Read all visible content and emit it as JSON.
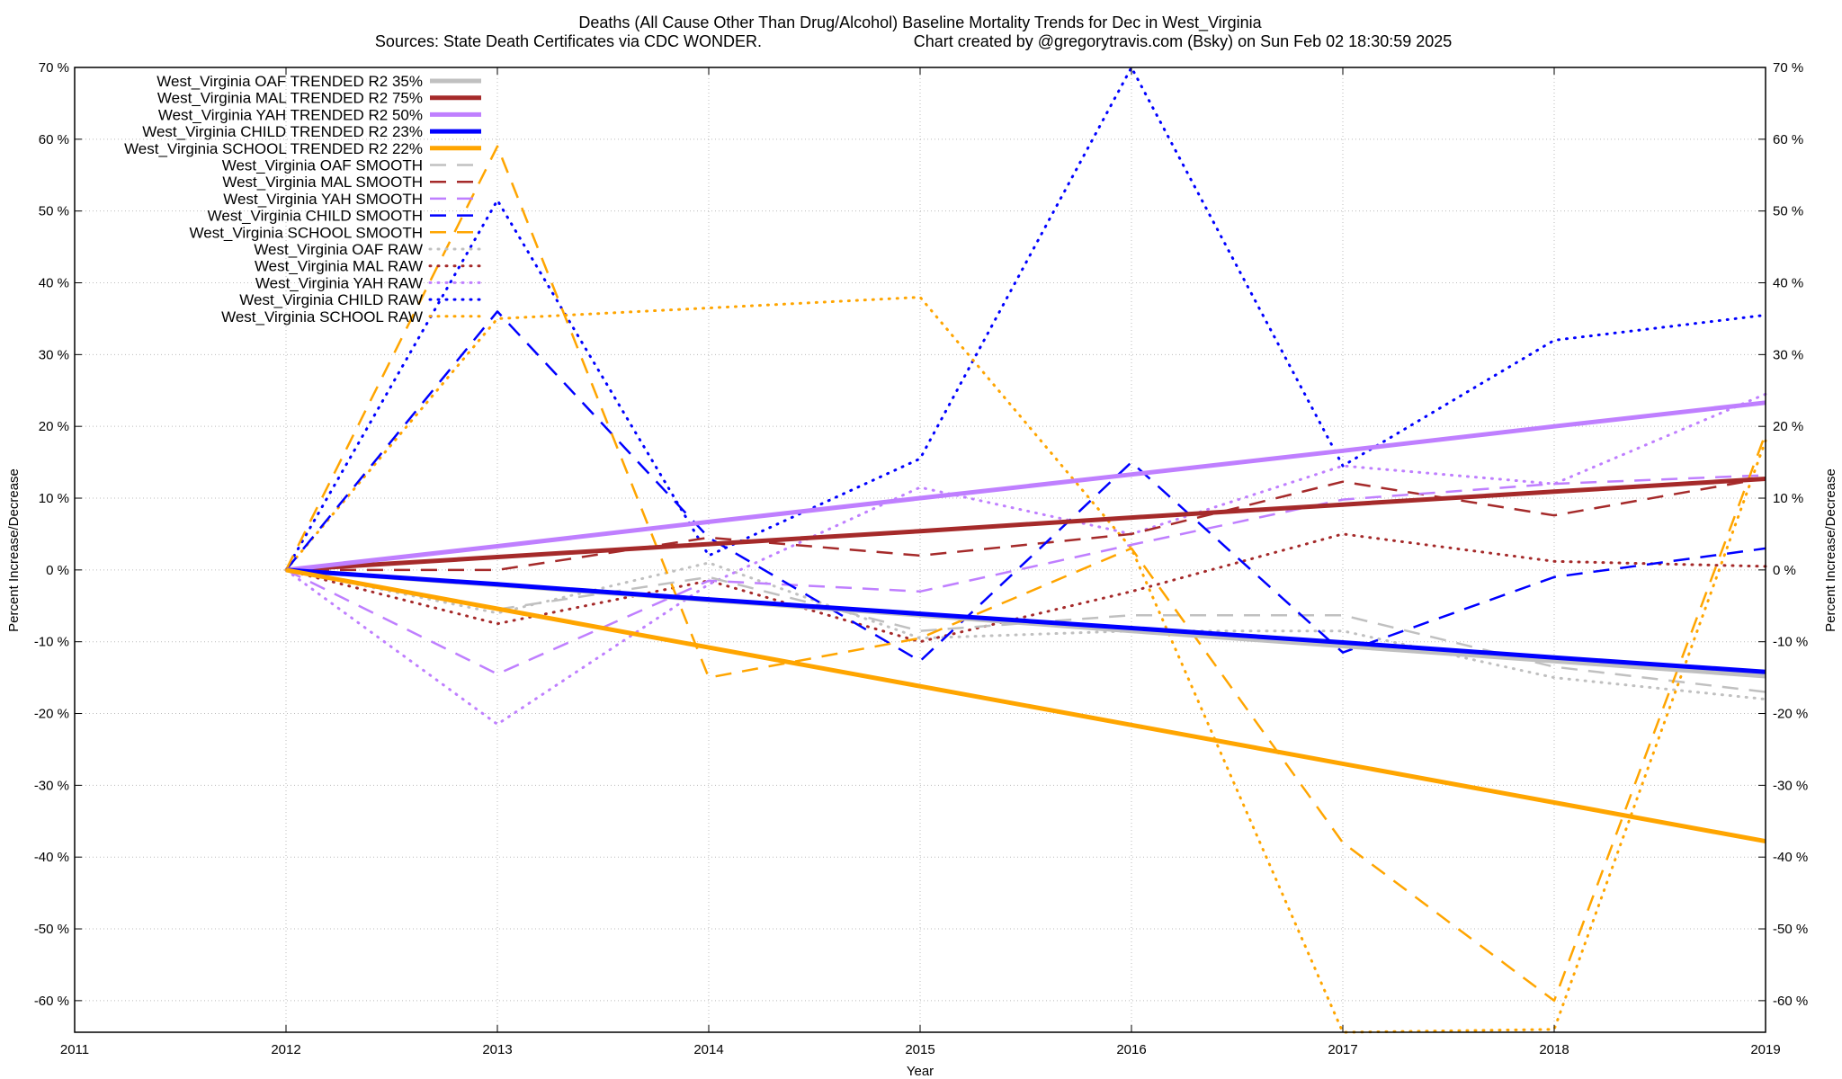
{
  "chart_data": {
    "type": "line",
    "title": "Deaths (All Cause Other Than Drug/Alcohol)  Baseline Mortality Trends for Dec in West_Virginia",
    "subtitle_left": "Sources: State Death Certificates via CDC WONDER.",
    "subtitle_right": "Chart created by @gregorytravis.com (Bsky) on Sun Feb 02 18:30:59 2025",
    "xlabel": "Year",
    "ylabel": "Percent Increase/Decrease",
    "y2label": "Percent Increase/Decrease",
    "xlim": [
      2011,
      2019
    ],
    "ylim": [
      -64.4,
      70
    ],
    "xticks": [
      "2011",
      "2012",
      "2013",
      "2014",
      "2015",
      "2016",
      "2017",
      "2018",
      "2019"
    ],
    "yticks": [
      "70 %",
      "60 %",
      "50 %",
      "40 %",
      "30 %",
      "20 %",
      "10 %",
      "0 %",
      "-10 %",
      "-20 %",
      "-30 %",
      "-40 %",
      "-50 %",
      "-60 %"
    ],
    "ytick_values": [
      70,
      60,
      50,
      40,
      30,
      20,
      10,
      0,
      -10,
      -20,
      -30,
      -40,
      -50,
      -60
    ],
    "grid": true,
    "legend_placement": "top-left",
    "x": [
      2012,
      2013,
      2014,
      2015,
      2016,
      2017,
      2018,
      2019
    ],
    "series": [
      {
        "name": "West_Virginia OAF TRENDED R2  35%",
        "style": "trend",
        "color": "#c0c0c0",
        "values": [
          0,
          -2.1,
          -4.2,
          -6.3,
          -8.5,
          -10.6,
          -12.7,
          -14.8
        ]
      },
      {
        "name": "West_Virginia MAL TRENDED R2  75%",
        "style": "trend",
        "color": "#a52a2a",
        "values": [
          0,
          1.8,
          3.6,
          5.4,
          7.3,
          9.1,
          10.9,
          12.7
        ]
      },
      {
        "name": "West_Virginia YAH TRENDED R2  50%",
        "style": "trend",
        "color": "#bf7fff",
        "values": [
          0,
          3.3,
          6.7,
          10.0,
          13.3,
          16.6,
          20.0,
          23.3
        ]
      },
      {
        "name": "West_Virginia CHILD TRENDED R2  23%",
        "style": "trend",
        "color": "#0000ff",
        "values": [
          0,
          -2.0,
          -4.1,
          -6.1,
          -8.1,
          -10.1,
          -12.2,
          -14.2
        ]
      },
      {
        "name": "West_Virginia SCHOOL TRENDED R2  22%",
        "style": "trend",
        "color": "#ffa500",
        "values": [
          0,
          -5.4,
          -10.8,
          -16.2,
          -21.6,
          -27.0,
          -32.4,
          -37.8
        ]
      },
      {
        "name": "West_Virginia OAF SMOOTH",
        "style": "smooth",
        "color": "#c0c0c0",
        "values": [
          0,
          -5.5,
          -1,
          -8.5,
          -6.3,
          -6.3,
          -13.5,
          -17
        ]
      },
      {
        "name": "West_Virginia MAL SMOOTH",
        "style": "smooth",
        "color": "#a52a2a",
        "values": [
          0,
          0,
          4.5,
          2,
          5,
          12.3,
          7.6,
          12.8
        ]
      },
      {
        "name": "West_Virginia YAH SMOOTH",
        "style": "smooth",
        "color": "#bf7fff",
        "values": [
          0,
          -14.5,
          -1.5,
          -3,
          3.5,
          9.8,
          12,
          13.2
        ]
      },
      {
        "name": "West_Virginia CHILD SMOOTH",
        "style": "smooth",
        "color": "#0000ff",
        "values": [
          0,
          36,
          4.5,
          -12.7,
          15,
          -11.5,
          -1,
          3
        ]
      },
      {
        "name": "West_Virginia SCHOOL SMOOTH",
        "style": "smooth",
        "color": "#ffa500",
        "values": [
          0,
          59,
          -15,
          -9.5,
          3,
          -38,
          -60,
          19
        ]
      },
      {
        "name": "West_Virginia OAF RAW",
        "style": "raw",
        "color": "#c0c0c0",
        "values": [
          0,
          -6,
          1,
          -9.5,
          -8.5,
          -8.5,
          -15,
          -18
        ]
      },
      {
        "name": "West_Virginia MAL RAW",
        "style": "raw",
        "color": "#a52a2a",
        "values": [
          0,
          -7.5,
          -1.5,
          -10,
          -3,
          5,
          1.2,
          0.5
        ]
      },
      {
        "name": "West_Virginia YAH RAW",
        "style": "raw",
        "color": "#bf7fff",
        "values": [
          0,
          -21.5,
          -2,
          11.5,
          5,
          14.5,
          12,
          24.5
        ]
      },
      {
        "name": "West_Virginia CHILD RAW",
        "style": "raw",
        "color": "#0000ff",
        "values": [
          0,
          51.5,
          2,
          15.5,
          70,
          14.5,
          32,
          35.5
        ]
      },
      {
        "name": "West_Virginia SCHOOL RAW",
        "style": "raw",
        "color": "#ffa500",
        "values": [
          0,
          35,
          36.5,
          38,
          3,
          -64.4,
          -64,
          18
        ]
      }
    ]
  }
}
